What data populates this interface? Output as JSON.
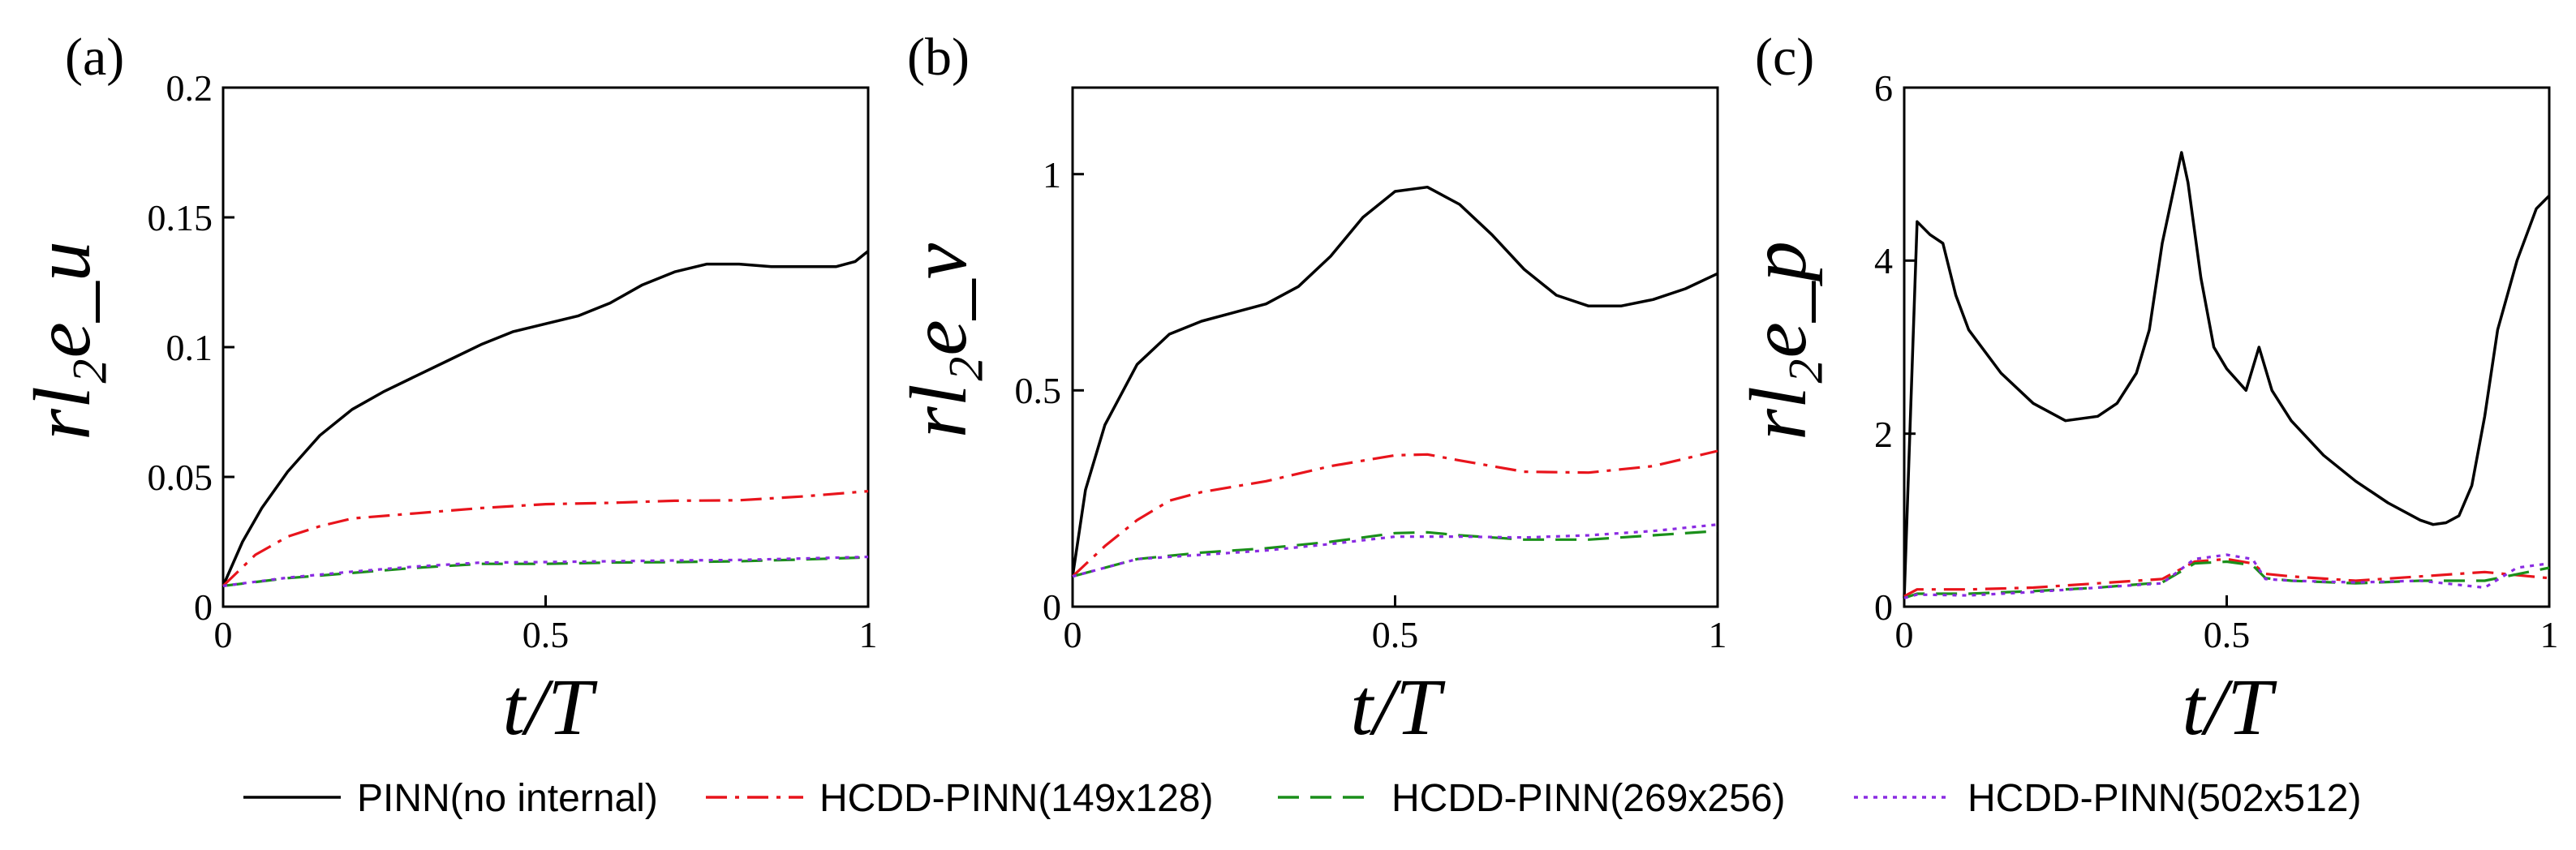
{
  "chart_data": [
    {
      "type": "line",
      "panel_label": "(a)",
      "ylabel": "rl₂e_u",
      "xlabel": "t/T",
      "xlim": [
        0,
        1
      ],
      "ylim": [
        0,
        0.2
      ],
      "xticks": [
        0,
        0.5,
        1
      ],
      "xtick_labels": [
        "0",
        "0.5",
        "1"
      ],
      "yticks": [
        0,
        0.05,
        0.1,
        0.15,
        0.2
      ],
      "ytick_labels": [
        "0",
        "0.05",
        "0.1",
        "0.15",
        "0.2"
      ],
      "series": [
        {
          "name": "PINN(no internal)",
          "x": [
            0,
            0.03,
            0.06,
            0.1,
            0.15,
            0.2,
            0.25,
            0.3,
            0.35,
            0.4,
            0.45,
            0.5,
            0.55,
            0.6,
            0.65,
            0.7,
            0.75,
            0.8,
            0.85,
            0.9,
            0.95,
            0.98,
            1.0
          ],
          "y": [
            0.008,
            0.025,
            0.038,
            0.052,
            0.066,
            0.076,
            0.083,
            0.089,
            0.095,
            0.101,
            0.106,
            0.109,
            0.112,
            0.117,
            0.124,
            0.129,
            0.132,
            0.132,
            0.131,
            0.131,
            0.131,
            0.133,
            0.137
          ]
        },
        {
          "name": "HCDD-PINN(149x128)",
          "x": [
            0,
            0.05,
            0.1,
            0.15,
            0.2,
            0.3,
            0.4,
            0.5,
            0.6,
            0.7,
            0.8,
            0.9,
            1.0
          ],
          "y": [
            0.008,
            0.02,
            0.027,
            0.031,
            0.034,
            0.036,
            0.038,
            0.0395,
            0.04,
            0.0408,
            0.041,
            0.0425,
            0.0445
          ]
        },
        {
          "name": "HCDD-PINN(269x256)",
          "x": [
            0,
            0.1,
            0.2,
            0.3,
            0.4,
            0.5,
            0.6,
            0.7,
            0.8,
            0.9,
            1.0
          ],
          "y": [
            0.008,
            0.011,
            0.013,
            0.015,
            0.0165,
            0.0165,
            0.017,
            0.0172,
            0.0175,
            0.0182,
            0.019
          ]
        },
        {
          "name": "HCDD-PINN(502x512)",
          "x": [
            0,
            0.1,
            0.2,
            0.3,
            0.4,
            0.5,
            0.6,
            0.7,
            0.8,
            0.9,
            1.0
          ],
          "y": [
            0.008,
            0.0112,
            0.0135,
            0.0155,
            0.017,
            0.0172,
            0.0175,
            0.0178,
            0.018,
            0.0186,
            0.0192
          ]
        }
      ]
    },
    {
      "type": "line",
      "panel_label": "(b)",
      "ylabel": "rl₂e_v",
      "xlabel": "t/T",
      "xlim": [
        0,
        1
      ],
      "ylim": [
        0,
        1.2
      ],
      "xticks": [
        0,
        0.5,
        1
      ],
      "xtick_labels": [
        "0",
        "0.5",
        "1"
      ],
      "yticks": [
        0,
        0.5,
        1
      ],
      "ytick_labels": [
        "0",
        "0.5",
        "1"
      ],
      "series": [
        {
          "name": "PINN(no internal)",
          "x": [
            0,
            0.02,
            0.05,
            0.1,
            0.15,
            0.2,
            0.25,
            0.3,
            0.35,
            0.4,
            0.45,
            0.5,
            0.55,
            0.6,
            0.65,
            0.7,
            0.75,
            0.8,
            0.85,
            0.9,
            0.95,
            1.0
          ],
          "y": [
            0.07,
            0.27,
            0.42,
            0.56,
            0.63,
            0.66,
            0.68,
            0.7,
            0.74,
            0.81,
            0.9,
            0.96,
            0.97,
            0.93,
            0.86,
            0.78,
            0.72,
            0.695,
            0.695,
            0.71,
            0.735,
            0.77
          ]
        },
        {
          "name": "HCDD-PINN(149x128)",
          "x": [
            0,
            0.05,
            0.1,
            0.15,
            0.2,
            0.3,
            0.4,
            0.5,
            0.55,
            0.6,
            0.7,
            0.8,
            0.9,
            1.0
          ],
          "y": [
            0.07,
            0.14,
            0.2,
            0.245,
            0.265,
            0.29,
            0.325,
            0.35,
            0.352,
            0.338,
            0.312,
            0.31,
            0.325,
            0.36
          ]
        },
        {
          "name": "HCDD-PINN(269x256)",
          "x": [
            0,
            0.1,
            0.2,
            0.3,
            0.4,
            0.5,
            0.55,
            0.6,
            0.7,
            0.8,
            0.9,
            1.0
          ],
          "y": [
            0.07,
            0.11,
            0.125,
            0.135,
            0.15,
            0.17,
            0.172,
            0.165,
            0.155,
            0.155,
            0.165,
            0.175
          ]
        },
        {
          "name": "HCDD-PINN(502x512)",
          "x": [
            0,
            0.1,
            0.2,
            0.3,
            0.4,
            0.5,
            0.6,
            0.7,
            0.8,
            0.9,
            1.0
          ],
          "y": [
            0.07,
            0.11,
            0.12,
            0.13,
            0.145,
            0.162,
            0.162,
            0.16,
            0.165,
            0.175,
            0.19
          ]
        }
      ]
    },
    {
      "type": "line",
      "panel_label": "(c)",
      "ylabel": "rl₂e_p",
      "xlabel": "t/T",
      "xlim": [
        0,
        1
      ],
      "ylim": [
        0,
        6
      ],
      "xticks": [
        0,
        0.5,
        1
      ],
      "xtick_labels": [
        "0",
        "0.5",
        "1"
      ],
      "yticks": [
        0,
        2,
        4,
        6
      ],
      "ytick_labels": [
        "0",
        "2",
        "4",
        "6"
      ],
      "series": [
        {
          "name": "PINN(no internal)",
          "x": [
            0,
            0.02,
            0.04,
            0.06,
            0.08,
            0.1,
            0.15,
            0.2,
            0.25,
            0.3,
            0.33,
            0.36,
            0.38,
            0.4,
            0.42,
            0.43,
            0.44,
            0.46,
            0.48,
            0.5,
            0.53,
            0.55,
            0.57,
            0.6,
            0.65,
            0.7,
            0.75,
            0.8,
            0.82,
            0.84,
            0.86,
            0.88,
            0.9,
            0.92,
            0.95,
            0.98,
            1.0
          ],
          "y": [
            0.1,
            4.45,
            4.3,
            4.2,
            3.6,
            3.2,
            2.7,
            2.35,
            2.15,
            2.2,
            2.35,
            2.7,
            3.2,
            4.2,
            4.9,
            5.25,
            4.9,
            3.8,
            3.0,
            2.75,
            2.5,
            3.0,
            2.5,
            2.15,
            1.75,
            1.45,
            1.2,
            1.0,
            0.95,
            0.97,
            1.05,
            1.4,
            2.2,
            3.2,
            4.0,
            4.6,
            4.75
          ]
        },
        {
          "name": "HCDD-PINN(149x128)",
          "x": [
            0,
            0.02,
            0.1,
            0.2,
            0.3,
            0.4,
            0.45,
            0.5,
            0.54,
            0.56,
            0.6,
            0.7,
            0.8,
            0.9,
            1.0
          ],
          "y": [
            0.12,
            0.2,
            0.2,
            0.22,
            0.27,
            0.32,
            0.52,
            0.55,
            0.5,
            0.38,
            0.35,
            0.3,
            0.35,
            0.4,
            0.33
          ]
        },
        {
          "name": "HCDD-PINN(269x256)",
          "x": [
            0,
            0.02,
            0.1,
            0.2,
            0.3,
            0.4,
            0.45,
            0.5,
            0.54,
            0.56,
            0.6,
            0.7,
            0.8,
            0.9,
            1.0
          ],
          "y": [
            0.1,
            0.15,
            0.15,
            0.18,
            0.22,
            0.28,
            0.5,
            0.52,
            0.48,
            0.33,
            0.3,
            0.27,
            0.3,
            0.3,
            0.45
          ]
        },
        {
          "name": "HCDD-PINN(502x512)",
          "x": [
            0,
            0.02,
            0.1,
            0.2,
            0.3,
            0.4,
            0.45,
            0.5,
            0.54,
            0.56,
            0.6,
            0.7,
            0.8,
            0.9,
            0.95,
            1.0
          ],
          "y": [
            0.1,
            0.14,
            0.13,
            0.17,
            0.22,
            0.27,
            0.55,
            0.6,
            0.55,
            0.32,
            0.3,
            0.28,
            0.3,
            0.22,
            0.45,
            0.5
          ]
        }
      ]
    }
  ],
  "legend": [
    {
      "label": "PINN(no internal)",
      "color": "#000000",
      "dash": "solid"
    },
    {
      "label": "HCDD-PINN(149x128)",
      "color": "#e8141c",
      "dash": "dashdot"
    },
    {
      "label": "HCDD-PINN(269x256)",
      "color": "#1a8f1a",
      "dash": "dashed"
    },
    {
      "label": "HCDD-PINN(502x512)",
      "color": "#8a2be2",
      "dash": "dotted"
    }
  ]
}
